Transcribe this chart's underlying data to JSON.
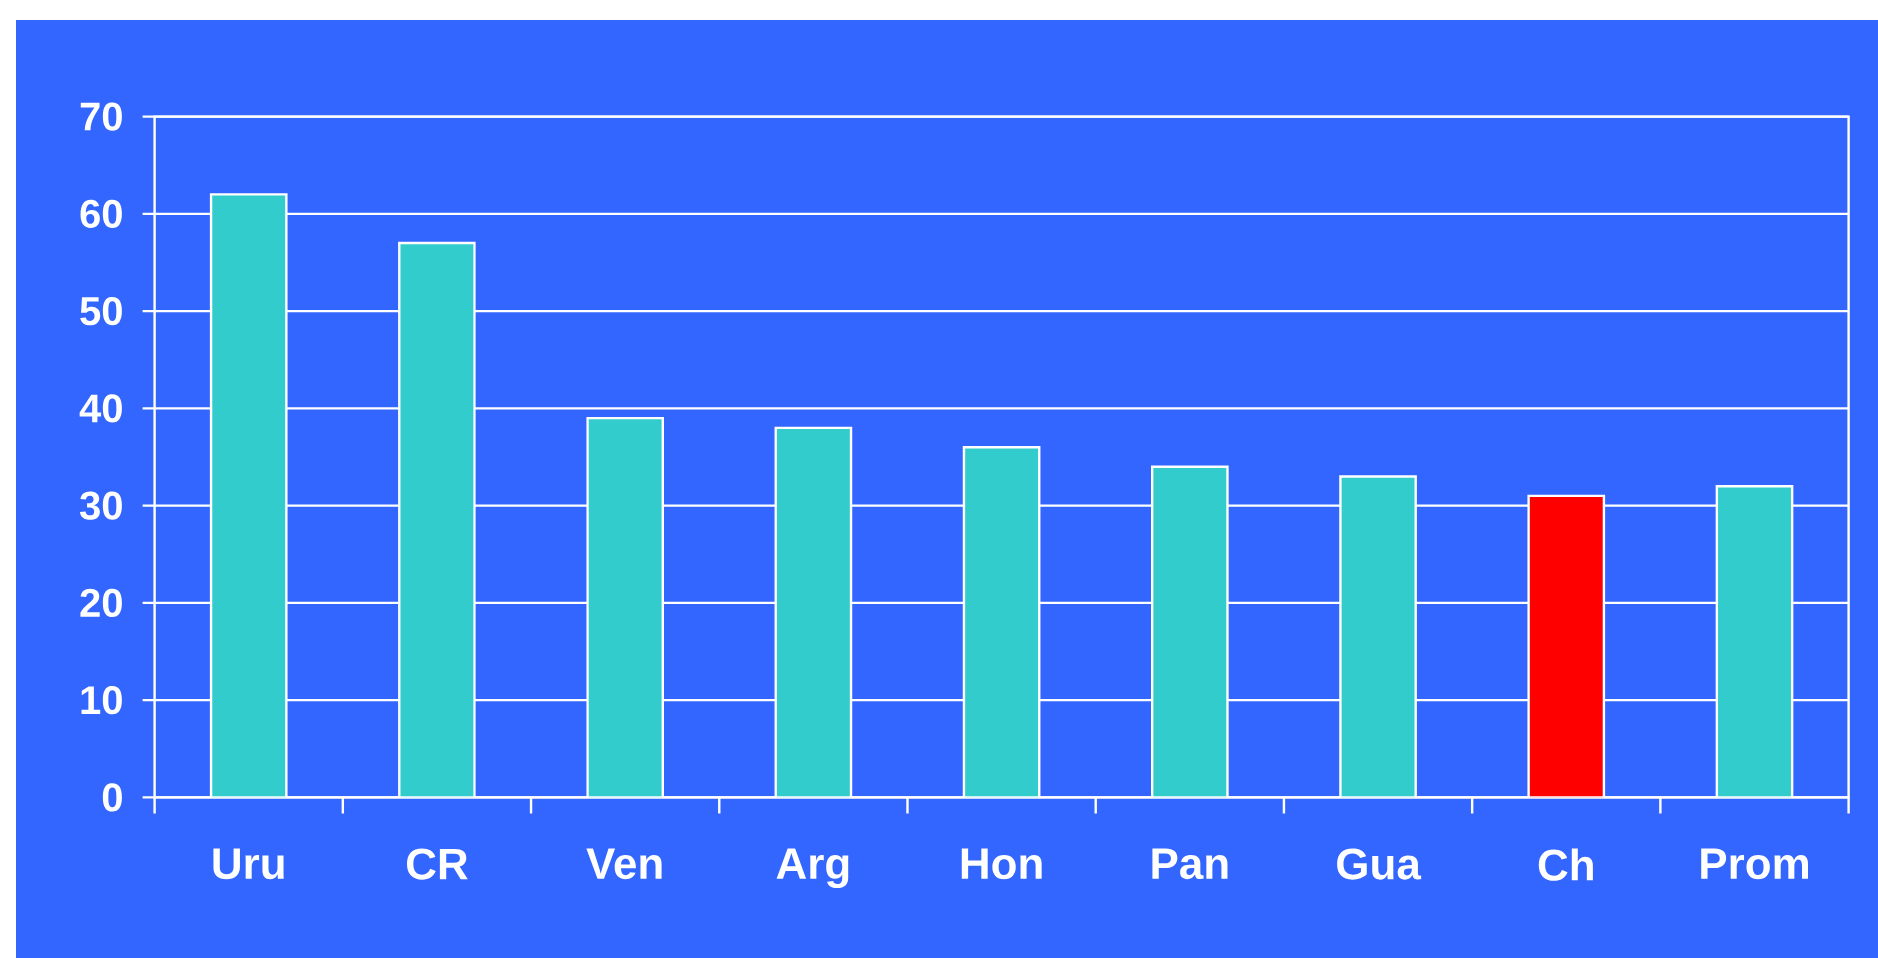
{
  "chart_data": {
    "type": "bar",
    "categories": [
      "Uru",
      "CR",
      "Ven",
      "Arg",
      "Hon",
      "Pan",
      "Gua",
      "Ch",
      "Prom"
    ],
    "values": [
      62,
      57,
      39,
      38,
      36,
      34,
      33,
      31,
      32
    ],
    "colors": [
      "#33cccc",
      "#33cccc",
      "#33cccc",
      "#33cccc",
      "#33cccc",
      "#33cccc",
      "#33cccc",
      "#ff0000",
      "#33cccc"
    ],
    "ylim": [
      0,
      70
    ],
    "yticks": [
      0,
      10,
      20,
      30,
      40,
      50,
      60,
      70
    ],
    "grid": "y"
  }
}
